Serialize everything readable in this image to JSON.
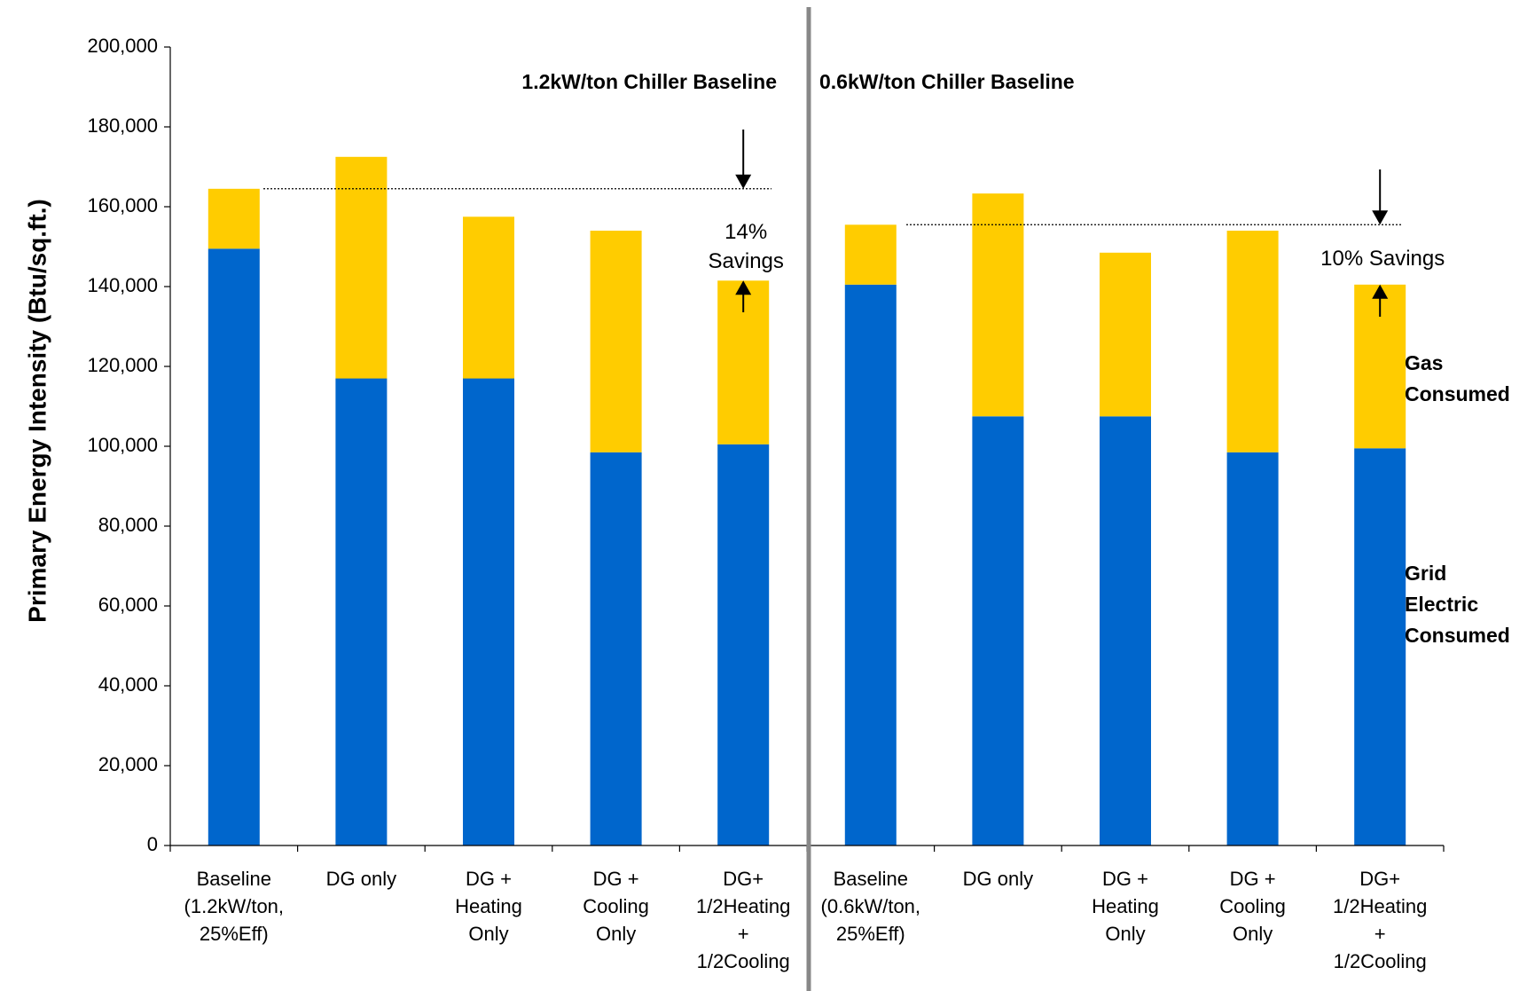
{
  "chart_data": {
    "type": "bar",
    "stacked": true,
    "ylabel": "Primary Energy Intensity (Btu/sq.ft.)",
    "ylim": [
      0,
      200000
    ],
    "yticks": [
      "0",
      "20,000",
      "40,000",
      "60,000",
      "80,000",
      "100,000",
      "120,000",
      "140,000",
      "160,000",
      "180,000",
      "200,000"
    ],
    "grid": false,
    "panels": [
      {
        "title": "1.2kW/ton Chiller Baseline",
        "categories": [
          [
            "Baseline",
            "(1.2kW/ton,",
            "25%Eff)"
          ],
          [
            "DG only"
          ],
          [
            "DG +",
            "Heating",
            "Only"
          ],
          [
            "DG +",
            "Cooling",
            "Only"
          ],
          [
            "DG+",
            "1/2Heating",
            "+",
            "1/2Cooling"
          ]
        ],
        "baseline_reference": 164500,
        "savings_label": [
          "14%",
          "Savings"
        ]
      },
      {
        "title": "0.6kW/ton Chiller Baseline",
        "categories": [
          [
            "Baseline",
            "(0.6kW/ton,",
            "25%Eff)"
          ],
          [
            "DG only"
          ],
          [
            "DG +",
            "Heating",
            "Only"
          ],
          [
            "DG +",
            "Cooling",
            "Only"
          ],
          [
            "DG+",
            "1/2Heating",
            "+",
            "1/2Cooling"
          ]
        ],
        "baseline_reference": 155500,
        "savings_label": [
          "10% Savings"
        ]
      }
    ],
    "series": [
      {
        "name": "Grid Electric Consumed",
        "name_lines": [
          "Grid",
          "Electric",
          "Consumed"
        ],
        "color": "#0066CC",
        "values": [
          149500,
          117000,
          117000,
          98500,
          100500,
          140500,
          107500,
          107500,
          98500,
          99500
        ]
      },
      {
        "name": "Gas Consumed",
        "name_lines": [
          "Gas",
          "Consumed"
        ],
        "color": "#FFCC00",
        "values": [
          15000,
          55500,
          40500,
          55500,
          41000,
          15000,
          55800,
          41000,
          55500,
          41000
        ]
      }
    ]
  }
}
